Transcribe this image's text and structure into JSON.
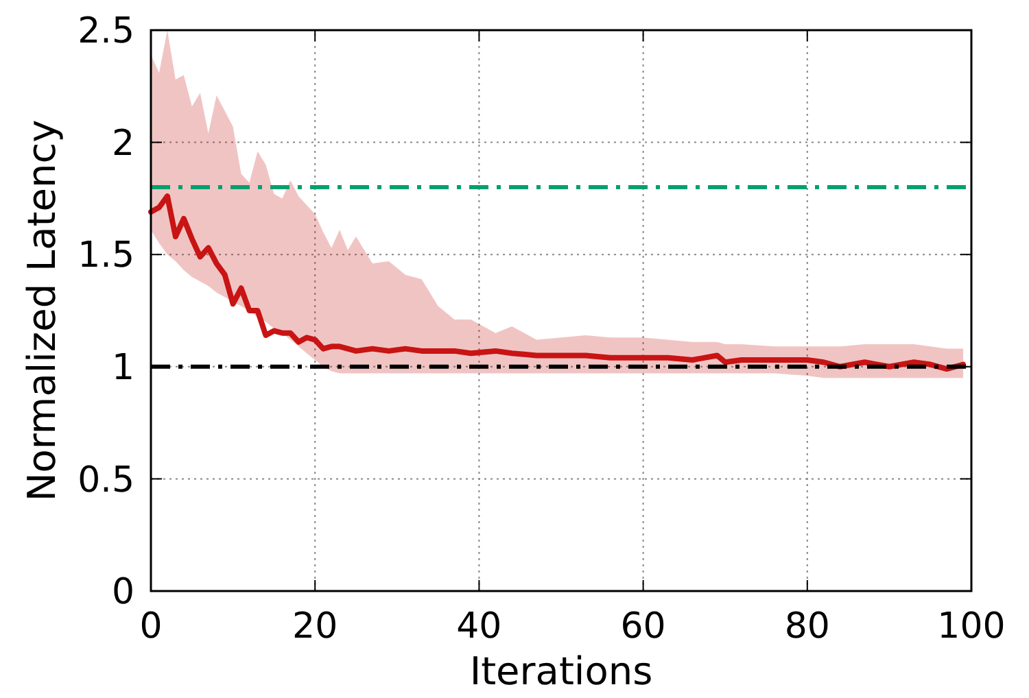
{
  "chart_data": {
    "type": "line",
    "xlabel": "Iterations",
    "ylabel": "Normalized Latency",
    "xlim": [
      0,
      100
    ],
    "ylim": [
      0,
      2.5
    ],
    "xticks": [
      0,
      20,
      40,
      60,
      80,
      100
    ],
    "yticks": [
      0,
      0.5,
      1,
      1.5,
      2,
      2.5
    ],
    "grid": true,
    "line_style": "solid",
    "series": [
      {
        "color": "#c81414",
        "x": [
          0,
          1,
          2,
          3,
          4,
          5,
          6,
          7,
          8,
          9,
          10,
          11,
          12,
          13,
          14,
          15,
          16,
          17,
          18,
          19,
          20,
          21,
          22,
          23,
          24,
          25,
          27,
          29,
          31,
          33,
          35,
          37,
          39,
          42,
          44,
          47,
          50,
          53,
          56,
          60,
          63,
          66,
          69,
          70,
          72,
          76,
          80,
          82,
          84,
          87,
          90,
          93,
          95,
          97,
          99
        ],
        "values": [
          1.69,
          1.71,
          1.76,
          1.58,
          1.66,
          1.57,
          1.49,
          1.53,
          1.46,
          1.41,
          1.28,
          1.35,
          1.25,
          1.25,
          1.14,
          1.16,
          1.15,
          1.15,
          1.11,
          1.13,
          1.12,
          1.08,
          1.09,
          1.09,
          1.08,
          1.07,
          1.08,
          1.07,
          1.08,
          1.07,
          1.07,
          1.07,
          1.06,
          1.07,
          1.06,
          1.05,
          1.05,
          1.05,
          1.04,
          1.04,
          1.04,
          1.03,
          1.05,
          1.02,
          1.03,
          1.03,
          1.03,
          1.02,
          1.0,
          1.02,
          1.0,
          1.02,
          1.01,
          0.99,
          1.01
        ],
        "lower": [
          1.61,
          1.55,
          1.5,
          1.47,
          1.43,
          1.4,
          1.38,
          1.36,
          1.33,
          1.31,
          1.29,
          1.27,
          1.25,
          1.22,
          1.2,
          1.17,
          1.15,
          1.12,
          1.09,
          1.06,
          1.03,
          1.0,
          0.98,
          0.97,
          0.97,
          0.97,
          0.97,
          0.97,
          0.97,
          0.97,
          0.97,
          0.97,
          0.97,
          0.97,
          0.97,
          0.97,
          0.97,
          0.97,
          0.97,
          0.97,
          0.97,
          0.97,
          0.97,
          0.97,
          0.97,
          0.97,
          0.96,
          0.95,
          0.95,
          0.95,
          0.95,
          0.95,
          0.95,
          0.95,
          0.95
        ],
        "upper": [
          2.39,
          2.31,
          2.5,
          2.28,
          2.3,
          2.16,
          2.22,
          2.04,
          2.21,
          2.14,
          2.07,
          1.86,
          1.82,
          1.96,
          1.9,
          1.77,
          1.75,
          1.83,
          1.76,
          1.72,
          1.68,
          1.6,
          1.53,
          1.61,
          1.52,
          1.58,
          1.46,
          1.47,
          1.41,
          1.39,
          1.27,
          1.21,
          1.21,
          1.15,
          1.18,
          1.12,
          1.13,
          1.14,
          1.13,
          1.13,
          1.12,
          1.11,
          1.11,
          1.1,
          1.1,
          1.09,
          1.09,
          1.09,
          1.09,
          1.1,
          1.1,
          1.1,
          1.09,
          1.08,
          1.08
        ]
      }
    ],
    "ref_lines": [
      {
        "axis": "y",
        "value": 1,
        "color": "#000000",
        "line_style": "dashed"
      },
      {
        "axis": "y",
        "value": 1.8,
        "color": "#00a070",
        "line_style": "dashed"
      }
    ]
  }
}
